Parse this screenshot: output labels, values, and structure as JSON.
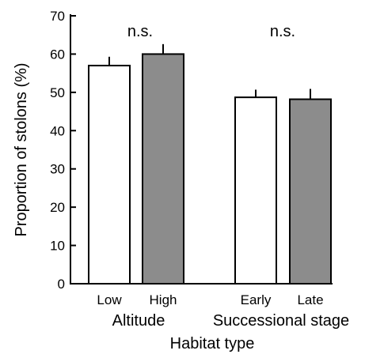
{
  "chart_data": {
    "type": "bar",
    "title": "",
    "xlabel": "Habitat type",
    "ylabel": "Proportion of stolons (%)",
    "ylim": [
      0,
      70
    ],
    "yticks": [
      0,
      10,
      20,
      30,
      40,
      50,
      60,
      70
    ],
    "grid": false,
    "legend": "none",
    "groups": [
      {
        "label": "Altitude",
        "annotation": "n.s.",
        "bars": [
          {
            "category": "Low",
            "value": 57.0,
            "error": 2.3,
            "fill": "#ffffff"
          },
          {
            "category": "High",
            "value": 60.0,
            "error": 2.6,
            "fill": "#8c8c8c"
          }
        ]
      },
      {
        "label": "Successional stage",
        "annotation": "n.s.",
        "bars": [
          {
            "category": "Early",
            "value": 48.7,
            "error": 2.0,
            "fill": "#ffffff"
          },
          {
            "category": "Late",
            "value": 48.2,
            "error": 2.7,
            "fill": "#8c8c8c"
          }
        ]
      }
    ]
  }
}
